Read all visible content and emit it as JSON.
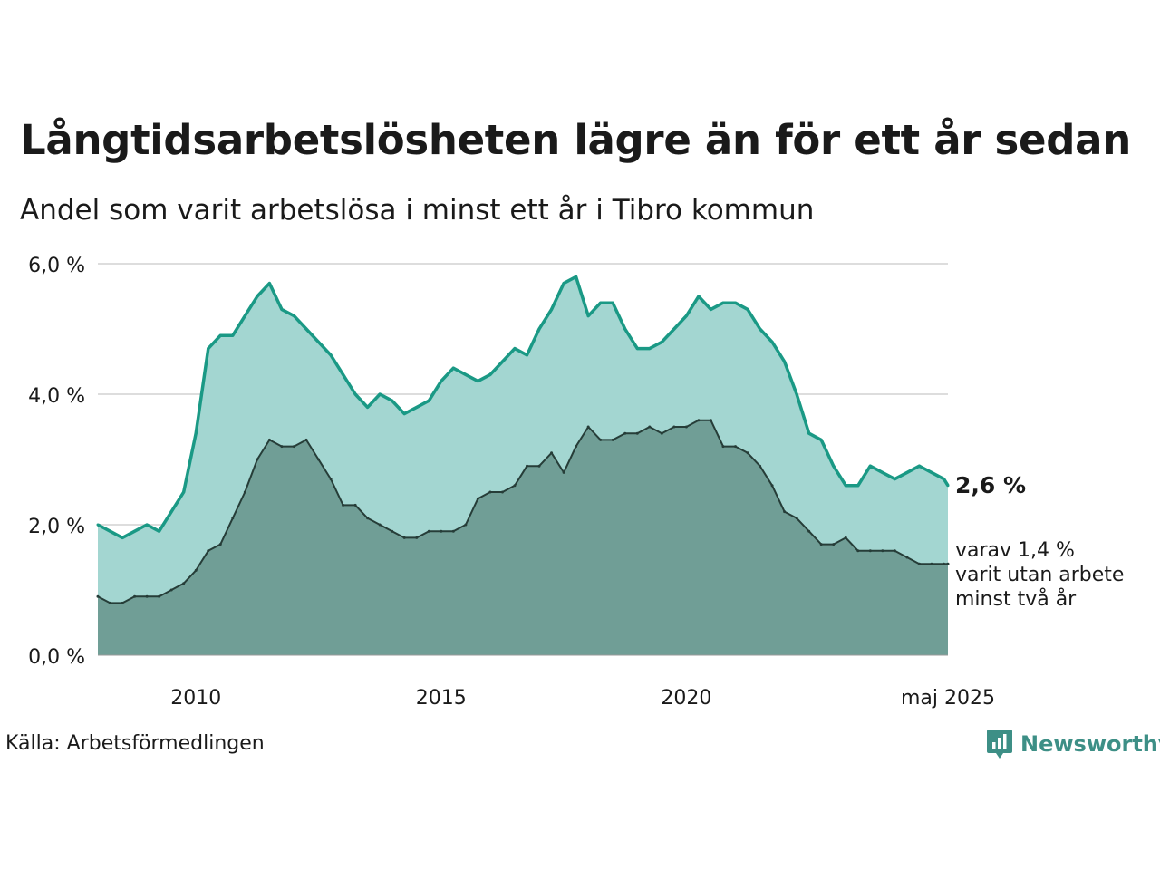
{
  "title": "Långtidsarbetslösheten lägre än för ett år sedan",
  "subtitle": "Andel som varit arbetslösa i minst ett år i Tibro kommun",
  "source": "Källa: Arbetsförmedlingen",
  "brand": "Newsworthy",
  "colors": {
    "outer_fill": "#a3d6d1",
    "outer_line": "#1a9985",
    "inner_fill": "#709e96",
    "inner_line": "#263d38",
    "grid": "#dddddd",
    "brand": "#3d8f86"
  },
  "chart_data": {
    "type": "area",
    "title": "Långtidsarbetslösheten lägre än för ett år sedan",
    "subtitle": "Andel som varit arbetslösa i minst ett år i Tibro kommun",
    "ylim": [
      0,
      6
    ],
    "xlim": [
      "2008-01",
      "2025-05"
    ],
    "y_ticks": [
      {
        "value": 0,
        "label": "0,0 %"
      },
      {
        "value": 2,
        "label": "2,0 %"
      },
      {
        "value": 4,
        "label": "4,0 %"
      },
      {
        "value": 6,
        "label": "6,0 %"
      }
    ],
    "x_ticks": [
      {
        "value": "2010-01",
        "label": "2010"
      },
      {
        "value": "2015-01",
        "label": "2015"
      },
      {
        "value": "2020-01",
        "label": "2020"
      },
      {
        "value": "2025-05",
        "label": "maj 2025"
      }
    ],
    "grid": true,
    "x": [
      "2008-01",
      "2008-04",
      "2008-07",
      "2008-10",
      "2009-01",
      "2009-04",
      "2009-07",
      "2009-10",
      "2010-01",
      "2010-04",
      "2010-07",
      "2010-10",
      "2011-01",
      "2011-04",
      "2011-07",
      "2011-10",
      "2012-01",
      "2012-04",
      "2012-07",
      "2012-10",
      "2013-01",
      "2013-04",
      "2013-07",
      "2013-10",
      "2014-01",
      "2014-04",
      "2014-07",
      "2014-10",
      "2015-01",
      "2015-04",
      "2015-07",
      "2015-10",
      "2016-01",
      "2016-04",
      "2016-07",
      "2016-10",
      "2017-01",
      "2017-04",
      "2017-07",
      "2017-10",
      "2018-01",
      "2018-04",
      "2018-07",
      "2018-10",
      "2019-01",
      "2019-04",
      "2019-07",
      "2019-10",
      "2020-01",
      "2020-04",
      "2020-07",
      "2020-10",
      "2021-01",
      "2021-04",
      "2021-07",
      "2021-10",
      "2022-01",
      "2022-04",
      "2022-07",
      "2022-10",
      "2023-01",
      "2023-04",
      "2023-07",
      "2023-10",
      "2024-01",
      "2024-04",
      "2024-07",
      "2024-10",
      "2025-01",
      "2025-04",
      "2025-05"
    ],
    "series": [
      {
        "name": "minst ett år",
        "values": [
          2.0,
          1.9,
          1.8,
          1.9,
          2.0,
          1.9,
          2.2,
          2.5,
          3.4,
          4.7,
          4.9,
          4.9,
          5.2,
          5.5,
          5.7,
          5.3,
          5.2,
          5.0,
          4.8,
          4.6,
          4.3,
          4.0,
          3.8,
          4.0,
          3.9,
          3.7,
          3.8,
          3.9,
          4.2,
          4.4,
          4.3,
          4.2,
          4.3,
          4.5,
          4.7,
          4.6,
          5.0,
          5.3,
          5.7,
          5.8,
          5.2,
          5.4,
          5.4,
          5.0,
          4.7,
          4.7,
          4.8,
          5.0,
          5.2,
          5.5,
          5.3,
          5.4,
          5.4,
          5.3,
          5.0,
          4.8,
          4.5,
          4.0,
          3.4,
          3.3,
          2.9,
          2.6,
          2.6,
          2.9,
          2.8,
          2.7,
          2.8,
          2.9,
          2.8,
          2.7,
          2.6
        ],
        "end_label": "2,6 %"
      },
      {
        "name": "minst två år",
        "values": [
          0.9,
          0.8,
          0.8,
          0.9,
          0.9,
          0.9,
          1.0,
          1.1,
          1.3,
          1.6,
          1.7,
          2.1,
          2.5,
          3.0,
          3.3,
          3.2,
          3.2,
          3.3,
          3.0,
          2.7,
          2.3,
          2.3,
          2.1,
          2.0,
          1.9,
          1.8,
          1.8,
          1.9,
          1.9,
          1.9,
          2.0,
          2.4,
          2.5,
          2.5,
          2.6,
          2.9,
          2.9,
          3.1,
          2.8,
          3.2,
          3.5,
          3.3,
          3.3,
          3.4,
          3.4,
          3.5,
          3.4,
          3.5,
          3.5,
          3.6,
          3.6,
          3.2,
          3.2,
          3.1,
          2.9,
          2.6,
          2.2,
          2.1,
          1.9,
          1.7,
          1.7,
          1.8,
          1.6,
          1.6,
          1.6,
          1.6,
          1.5,
          1.4,
          1.4,
          1.4,
          1.4
        ],
        "end_label": [
          "varav 1,4 %",
          "varit utan arbete",
          "minst två år"
        ]
      }
    ]
  }
}
